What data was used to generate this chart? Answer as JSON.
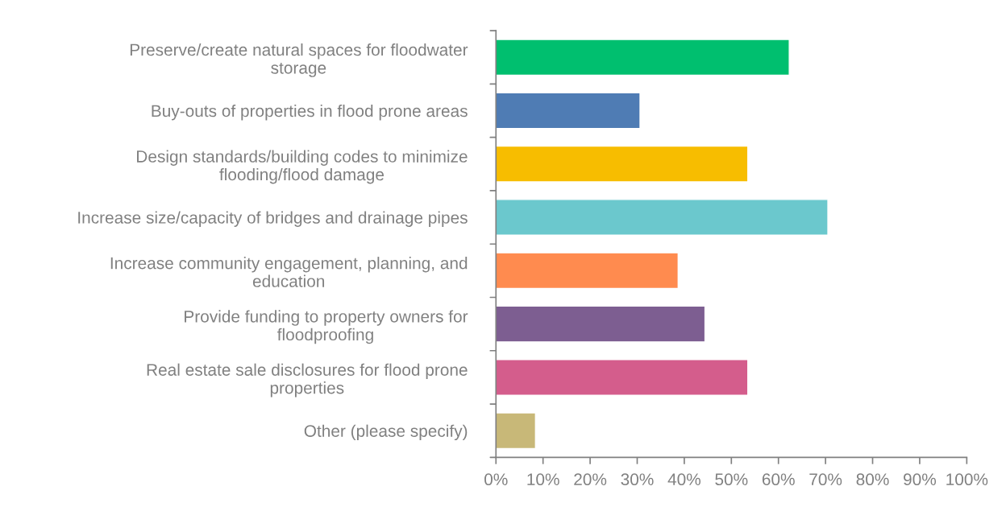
{
  "chart_data": {
    "type": "bar",
    "orientation": "horizontal",
    "categories": [
      "Preserve/create natural spaces for floodwater\nstorage",
      "Buy-outs of properties in flood prone areas",
      "Design standards/building codes to minimize\nflooding/flood damage",
      "Increase size/capacity of bridges and drainage pipes",
      "Increase community engagement, planning, and\neducation",
      "Provide funding to property owners for\nfloodproofing",
      "Real estate sale disclosures for flood prone\nproperties",
      "Other (please specify)"
    ],
    "values": [
      62.3,
      30.6,
      53.5,
      70.5,
      38.7,
      44.4,
      53.5,
      8.4
    ],
    "colors": [
      "#00bf6f",
      "#4f7cb4",
      "#f7bd00",
      "#6bc8cd",
      "#ff8b4f",
      "#7d5e91",
      "#d45d8c",
      "#c8b878"
    ],
    "xlim": [
      0,
      100
    ],
    "xticks": [
      {
        "value": 0,
        "label": "0%"
      },
      {
        "value": 10,
        "label": "10%"
      },
      {
        "value": 20,
        "label": "20%"
      },
      {
        "value": 30,
        "label": "30%"
      },
      {
        "value": 40,
        "label": "40%"
      },
      {
        "value": 50,
        "label": "50%"
      },
      {
        "value": 60,
        "label": "60%"
      },
      {
        "value": 70,
        "label": "70%"
      },
      {
        "value": 80,
        "label": "80%"
      },
      {
        "value": 90,
        "label": "90%"
      },
      {
        "value": 100,
        "label": "100%"
      }
    ],
    "grid": false,
    "legend": false
  }
}
